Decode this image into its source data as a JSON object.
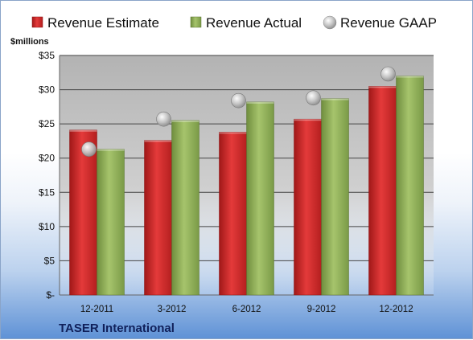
{
  "chart_data": {
    "type": "bar",
    "title": "",
    "ylabel": "$millions",
    "company": "TASER International",
    "categories": [
      "12-2011",
      "3-2012",
      "6-2012",
      "9-2012",
      "12-2012"
    ],
    "ylim": [
      0,
      35
    ],
    "yticks": [
      0,
      5,
      10,
      15,
      20,
      25,
      30,
      35
    ],
    "ytick_labels": [
      "$-",
      "$5",
      "$10",
      "$15",
      "$20",
      "$25",
      "$30",
      "$35"
    ],
    "grid": true,
    "legend_position": "top",
    "series": [
      {
        "name": "Revenue Estimate",
        "type": "bar",
        "color": "#d42a2a",
        "values": [
          24.1,
          22.6,
          23.8,
          25.7,
          30.5
        ]
      },
      {
        "name": "Revenue Actual",
        "type": "bar",
        "color": "#8fae5a",
        "values": [
          21.3,
          25.5,
          28.2,
          28.7,
          32.0
        ]
      },
      {
        "name": "Revenue GAAP",
        "type": "scatter",
        "color": "#c0c0c0",
        "values": [
          21.3,
          25.7,
          28.4,
          28.8,
          32.3
        ]
      }
    ]
  }
}
